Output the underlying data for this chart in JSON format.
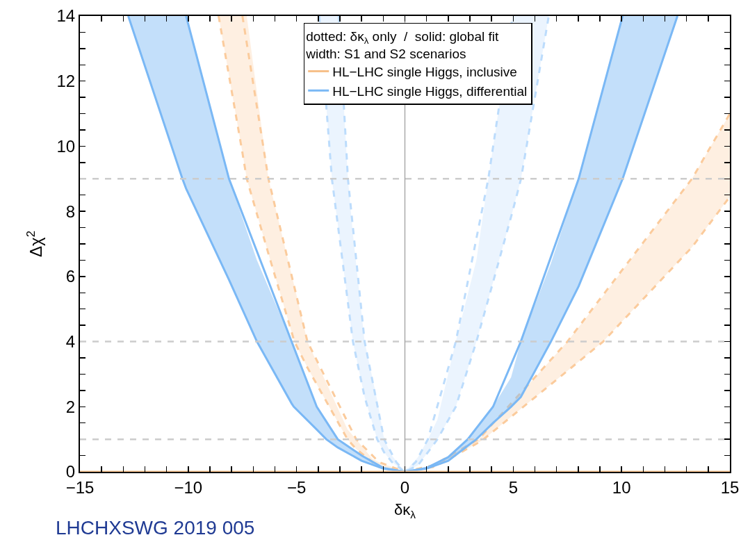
{
  "chart_data": {
    "type": "line",
    "xlabel": "δκ$_{λ}$",
    "ylabel": "Δχ$^{2}$",
    "legend_title": "dotted: δκ$_{λ}$ only  /  solid: global fit\nwidth: S1 and S2 scenarios",
    "legend": "top",
    "xlim": [
      -15,
      15
    ],
    "ylim": [
      0,
      14
    ],
    "xticks": [
      -15,
      {
        "value": -14,
        "label": null
      },
      {
        "value": -13,
        "label": null
      },
      {
        "value": -12,
        "label": null
      },
      {
        "value": -11,
        "label": null
      },
      -10,
      {
        "value": -9,
        "label": null
      },
      {
        "value": -8,
        "label": null
      },
      {
        "value": -7,
        "label": null
      },
      {
        "value": -6,
        "label": null
      },
      {
        "value": -5,
        "label": "−5"
      },
      {
        "value": -4,
        "label": null
      },
      {
        "value": -3,
        "label": null
      },
      {
        "value": -2,
        "label": null
      },
      {
        "value": -1,
        "label": null
      },
      0,
      {
        "value": 1,
        "label": null
      },
      {
        "value": 2,
        "label": null
      },
      {
        "value": 3,
        "label": null
      },
      {
        "value": 4,
        "label": null
      },
      5,
      {
        "value": 6,
        "label": null
      },
      {
        "value": 7,
        "label": null
      },
      {
        "value": 8,
        "label": null
      },
      {
        "value": 9,
        "label": null
      },
      10,
      {
        "value": 11,
        "label": null
      },
      {
        "value": 12,
        "label": null
      },
      {
        "value": 13,
        "label": null
      },
      {
        "value": 14,
        "label": null
      },
      15
    ],
    "yticks": [
      0,
      {
        "value": 0.5,
        "label": null
      },
      {
        "value": 1,
        "label": null
      },
      {
        "value": 1.5,
        "label": null
      },
      2,
      {
        "value": 2.5,
        "label": null
      },
      {
        "value": 3,
        "label": null
      },
      {
        "value": 3.5,
        "label": null
      },
      4,
      {
        "value": 4.5,
        "label": null
      },
      {
        "value": 5,
        "label": null
      },
      {
        "value": 5.5,
        "label": null
      },
      6,
      {
        "value": 6.5,
        "label": null
      },
      {
        "value": 7,
        "label": null
      },
      {
        "value": 7.5,
        "label": null
      },
      8,
      {
        "value": 8.5,
        "label": null
      },
      {
        "value": 9,
        "label": null
      },
      {
        "value": 9.5,
        "label": null
      },
      10,
      {
        "value": 10.5,
        "label": null
      },
      {
        "value": 11,
        "label": null
      },
      {
        "value": 11.5,
        "label": null
      },
      12,
      {
        "value": 12.5,
        "label": null
      },
      {
        "value": 13,
        "label": null
      },
      {
        "value": 13.5,
        "label": null
      },
      14
    ],
    "grid": false,
    "marker": "none",
    "series": [
      {
        "color": "#fbcb9c",
        "line_style": "dashed",
        "x": [
          -8.6,
          -7.5,
          -7.3,
          -6.3,
          -5.1,
          -4.5,
          -2.65,
          -2.25,
          -1.5,
          -1.2,
          0,
          1.3,
          1.5,
          3.4,
          3.63,
          7.5,
          9.15,
          13.25,
          15
        ],
        "values": [
          14,
          9.8,
          9,
          6.7,
          4,
          3.2,
          1,
          0.7,
          0.3,
          0.15,
          0,
          0.15,
          0.2,
          0.9,
          1,
          3.1,
          4,
          6.9,
          8.45
        ],
        "lower": [
          14,
          9.8,
          9,
          6.7,
          4,
          3.2,
          1,
          0.7,
          0.3,
          0.15,
          0,
          0.15,
          0.2,
          0.9,
          1,
          3.1,
          4,
          6.9,
          8.45
        ],
        "upper": [
          14,
          14,
          14,
          9,
          5.7,
          4,
          1.3,
          1,
          0.4,
          0.3,
          0,
          0.2,
          0.3,
          1,
          1.15,
          4,
          5.4,
          9,
          11
        ]
      },
      {
        "color": "#fbcb9c",
        "line_style": "dashed",
        "x": [
          -7.5,
          -6.3,
          -4.5,
          -2.25,
          -1.2,
          0,
          1.3,
          3.4,
          7.5,
          13.25,
          15
        ],
        "values": [
          14,
          9,
          4,
          1,
          0.3,
          0,
          0.2,
          1,
          4,
          9,
          11
        ]
      },
      {
        "color": "#bcdcfc",
        "line_style": "dashed",
        "x": [
          -3.95,
          -3.37,
          -3.05,
          -2.63,
          -2.4,
          -1.86,
          -1.28,
          -0.96,
          -0.6,
          0,
          0.6,
          1.06,
          1.5,
          2.35,
          3.3,
          3.85,
          4.97,
          5.36,
          6.64
        ],
        "values": [
          14,
          9,
          7.35,
          5.2,
          4,
          2.3,
          1,
          0.6,
          0.3,
          0,
          0.2,
          0.6,
          1,
          2,
          4,
          5.3,
          8,
          9,
          14
        ],
        "lower": [
          14,
          9,
          7.35,
          5.2,
          4,
          2.3,
          1,
          0.6,
          0.3,
          0,
          0.2,
          0.6,
          1,
          2,
          4,
          5.3,
          8,
          9,
          14
        ],
        "upper": [
          14,
          14,
          14,
          9,
          7.3,
          4,
          2.2,
          1,
          0.5,
          0,
          0.45,
          1,
          1.6,
          4,
          6.5,
          9,
          14,
          14,
          14
        ]
      },
      {
        "color": "#bcdcfc",
        "line_style": "dashed",
        "x": [
          -3.05,
          -2.63,
          -1.86,
          -0.96,
          -0.4,
          0,
          0.5,
          1.06,
          2.35,
          3.85,
          4.97
        ],
        "values": [
          14,
          9,
          4,
          1,
          0.3,
          0,
          0.3,
          1,
          4,
          9,
          14
        ]
      },
      {
        "name": "HL−LHC single Higgs, differential",
        "color": "#7ab8f5",
        "line_style": "solid",
        "x": [
          -12.77,
          -10.27,
          -10.1,
          -8.12,
          -6.83,
          -5.23,
          -5.13,
          -4.07,
          -3.63,
          -3.1,
          -2,
          -1,
          0,
          1,
          2,
          2.9,
          3.3,
          4.07,
          4.9,
          5.35,
          6.74,
          8.02,
          10.05,
          12.58
        ],
        "values": [
          14,
          9,
          8.7,
          5.9,
          4,
          2.1,
          2,
          1.3,
          1,
          0.75,
          0.34,
          0.1,
          0,
          0.1,
          0.34,
          0.8,
          1,
          1.5,
          2,
          2.3,
          4,
          5.7,
          9,
          14
        ],
        "lower": [
          14,
          9,
          8.7,
          5.9,
          4,
          2.1,
          2,
          1.3,
          1,
          0.75,
          0.34,
          0.1,
          0,
          0.1,
          0.34,
          0.8,
          1,
          1.5,
          2,
          2.3,
          4,
          5.7,
          9,
          14
        ],
        "upper": [
          14,
          14,
          14,
          9,
          6.5,
          4,
          3.9,
          2,
          1.6,
          1,
          0.5,
          0.12,
          0,
          0.12,
          0.45,
          1,
          1.3,
          2,
          2.9,
          4,
          6.4,
          9,
          14,
          14
        ]
      },
      {
        "color": "#7ab8f5",
        "line_style": "solid",
        "x": [
          -10.1,
          -8.12,
          -5.23,
          -4.07,
          -3.1,
          -2,
          -1,
          0,
          1,
          2,
          2.9,
          4.07,
          5.35,
          8.02,
          10.05
        ],
        "values": [
          14,
          9,
          4,
          2,
          1,
          0.5,
          0.12,
          0,
          0.12,
          0.45,
          1,
          2,
          4,
          9,
          14
        ]
      },
      {
        "name": "HL−LHC single Higgs, inclusive",
        "color": "#f7c08a",
        "line_style": "solid",
        "x": [
          -15,
          15
        ],
        "values": [
          0,
          0
        ]
      }
    ],
    "ref_lines": [
      {
        "axis": "x",
        "value": 0,
        "color": "#999999",
        "line_style": "solid"
      },
      {
        "axis": "y",
        "value": 1,
        "color": "#cccccc",
        "line_style": "dashed"
      },
      {
        "axis": "y",
        "value": 4,
        "color": "#cccccc",
        "line_style": "dashed"
      },
      {
        "axis": "y",
        "value": 9,
        "color": "#cccccc",
        "line_style": "dashed"
      }
    ],
    "annotations": [
      "LHCHXSWG 2019 005"
    ]
  }
}
